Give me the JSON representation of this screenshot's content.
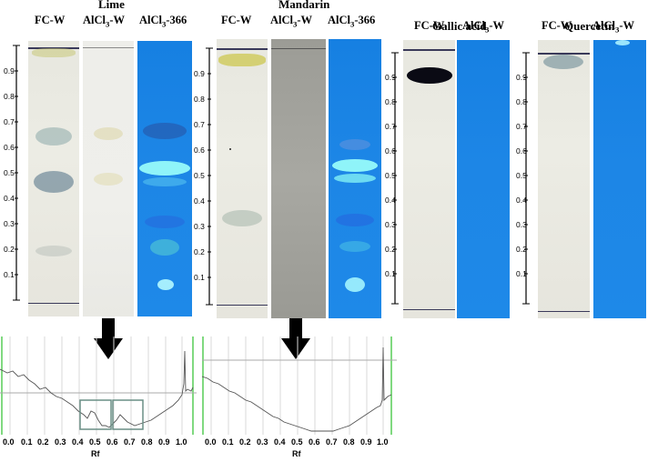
{
  "groups": [
    {
      "title": "Lime",
      "lanes": [
        "FC-W",
        "AlCl3-W",
        "AlCl3-366"
      ]
    },
    {
      "title": "Mandarin",
      "lanes": [
        "FC-W",
        "AlCl3-W",
        "AlCl3-366"
      ]
    },
    {
      "title": "Gallic acid",
      "lanes": [
        "FC-W",
        "AlCl3-W"
      ]
    },
    {
      "title": "Quercetin",
      "lanes": [
        "FC-W",
        "AlCl3-W"
      ]
    }
  ],
  "rf_ticks": [
    "0.9",
    "0.8",
    "0.7",
    "0.6",
    "0.5",
    "0.4",
    "0.3",
    "0.2",
    "0.1"
  ],
  "densitograms": [
    {
      "x_ticks": [
        "0.0",
        "0.1",
        "0.2",
        "0.3",
        "0.4",
        "0.5",
        "0.6",
        "0.7",
        "0.8",
        "0.9",
        "1.0"
      ],
      "xlabel": "Rf"
    },
    {
      "x_ticks": [
        "0.0",
        "0.1",
        "0.2",
        "0.3",
        "0.4",
        "0.5",
        "0.6",
        "0.7",
        "0.8",
        "0.9",
        "1.0"
      ],
      "xlabel": "Rf"
    }
  ]
}
